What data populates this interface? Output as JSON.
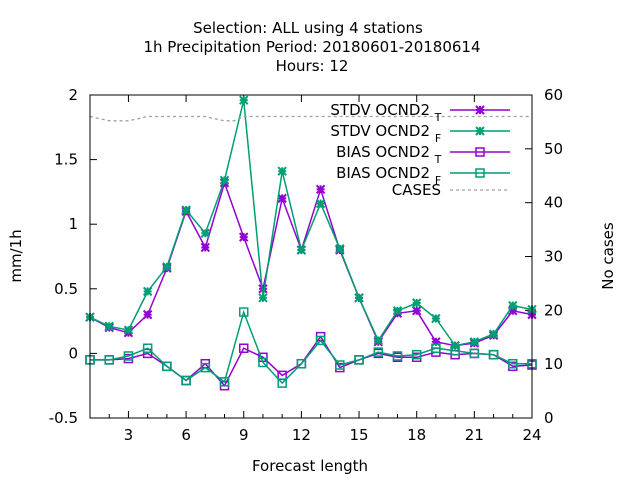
{
  "chart_data": {
    "type": "line",
    "title_lines": [
      "Selection: ALL using     4 stations",
      "1h Precipitation   Period: 20180601-20180614",
      "Hours:  12"
    ],
    "xlabel": "Forecast length",
    "ylabel": "mm/1h",
    "y2label": "No cases",
    "xlim": [
      1,
      24
    ],
    "ylim": [
      -0.5,
      2
    ],
    "y2lim": [
      0,
      60
    ],
    "xticks": [
      3,
      6,
      9,
      12,
      15,
      18,
      21,
      24
    ],
    "yticks": [
      -0.5,
      0,
      0.5,
      1,
      1.5,
      2
    ],
    "ytick_labels": [
      "-0.5",
      "0",
      "0.5",
      "1",
      "1.5",
      "2"
    ],
    "y2ticks": [
      0,
      10,
      20,
      30,
      40,
      50,
      60
    ],
    "legend_position": "top-right",
    "x": [
      1,
      2,
      3,
      4,
      5,
      6,
      7,
      8,
      9,
      10,
      11,
      12,
      13,
      14,
      15,
      16,
      17,
      18,
      19,
      20,
      21,
      22,
      23,
      24
    ],
    "series": [
      {
        "name": "STDV OCND2",
        "subscript": "T",
        "axis": "y",
        "color": "#9400d3",
        "marker": "star",
        "values": [
          0.28,
          0.2,
          0.16,
          0.3,
          0.66,
          1.1,
          0.82,
          1.32,
          0.9,
          0.5,
          1.2,
          0.8,
          1.27,
          0.8,
          0.43,
          0.09,
          0.31,
          0.33,
          0.09,
          0.06,
          0.08,
          0.14,
          0.33,
          0.3
        ]
      },
      {
        "name": "STDV OCND2",
        "subscript": "F",
        "axis": "y",
        "color": "#009e73",
        "marker": "star",
        "values": [
          0.28,
          0.21,
          0.18,
          0.48,
          0.67,
          1.11,
          0.93,
          1.34,
          1.96,
          0.43,
          1.41,
          0.8,
          1.16,
          0.81,
          0.43,
          0.1,
          0.33,
          0.39,
          0.27,
          0.06,
          0.09,
          0.15,
          0.37,
          0.34
        ]
      },
      {
        "name": "BIAS OCND2",
        "subscript": "T",
        "axis": "y",
        "color": "#9400d3",
        "marker": "square",
        "values": [
          -0.05,
          -0.05,
          -0.04,
          0.0,
          -0.1,
          -0.21,
          -0.08,
          -0.25,
          0.04,
          -0.03,
          -0.17,
          -0.08,
          0.13,
          -0.11,
          -0.05,
          0.0,
          -0.03,
          -0.03,
          0.01,
          -0.01,
          0.0,
          -0.01,
          -0.1,
          -0.09
        ]
      },
      {
        "name": "BIAS OCND2",
        "subscript": "F",
        "axis": "y",
        "color": "#009e73",
        "marker": "square",
        "values": [
          -0.05,
          -0.05,
          -0.02,
          0.04,
          -0.1,
          -0.21,
          -0.11,
          -0.22,
          0.32,
          -0.07,
          -0.23,
          -0.08,
          0.1,
          -0.09,
          -0.05,
          0.01,
          -0.02,
          -0.01,
          0.04,
          0.02,
          0.0,
          -0.01,
          -0.08,
          -0.08
        ]
      },
      {
        "name": "CASES",
        "subscript": "",
        "axis": "y2",
        "color": "#a0a0a0",
        "marker": "none",
        "dashed": true,
        "x": [
          1,
          1.5,
          2,
          2.5,
          3,
          3.5,
          4,
          5,
          6,
          7,
          7.5,
          8,
          8.5,
          9,
          10,
          11,
          12,
          13,
          14,
          15,
          16,
          17,
          18,
          19,
          20,
          21,
          22,
          23,
          24
        ],
        "values": [
          56,
          55.6,
          55.2,
          55.2,
          55.2,
          55.6,
          56,
          56,
          56,
          56,
          55.6,
          55.2,
          55.2,
          56,
          56,
          56,
          56,
          56,
          56,
          56,
          56,
          56,
          56,
          56,
          56,
          56,
          56,
          56,
          56
        ]
      }
    ]
  }
}
